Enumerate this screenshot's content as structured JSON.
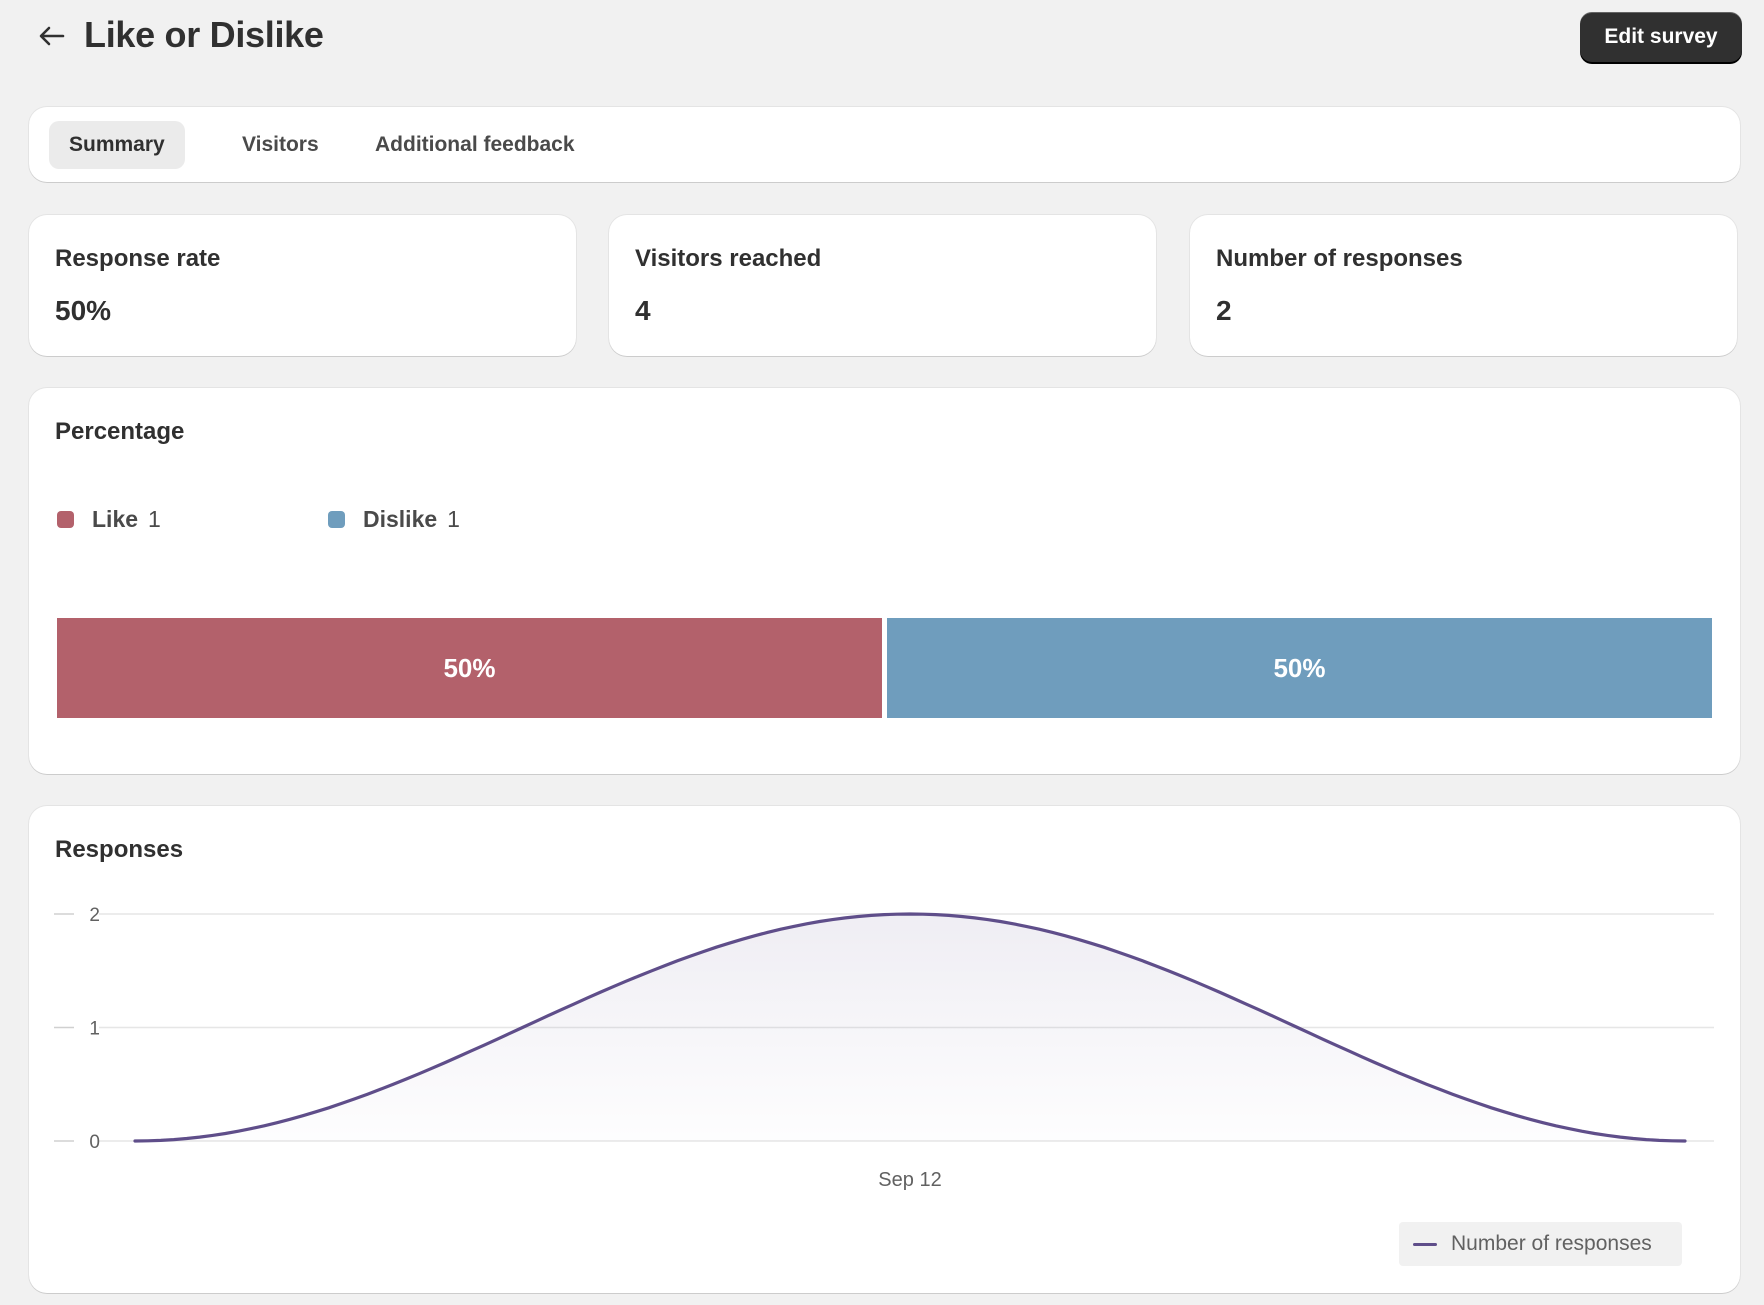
{
  "header": {
    "title": "Like or Dislike",
    "edit_button": "Edit survey"
  },
  "tabs": [
    {
      "label": "Summary",
      "active": true
    },
    {
      "label": "Visitors",
      "active": false
    },
    {
      "label": "Additional feedback",
      "active": false
    }
  ],
  "stats": [
    {
      "label": "Response rate",
      "value": "50%"
    },
    {
      "label": "Visitors reached",
      "value": "4"
    },
    {
      "label": "Number of responses",
      "value": "2"
    }
  ],
  "percentage": {
    "title": "Percentage",
    "legend": [
      {
        "label": "Like",
        "count": "1",
        "color": "#b3616b"
      },
      {
        "label": "Dislike",
        "count": "1",
        "color": "#6f9dbd"
      }
    ],
    "bar": [
      {
        "label": "50%",
        "value": 50,
        "color": "#b3616b"
      },
      {
        "label": "50%",
        "value": 50,
        "color": "#6f9dbd"
      }
    ]
  },
  "responses": {
    "title": "Responses",
    "legend_label": "Number of responses"
  },
  "chart_data": {
    "type": "area",
    "title": "Responses",
    "x": [
      "",
      "Sep 12",
      ""
    ],
    "x_tick_labels": [
      "Sep 12"
    ],
    "series": [
      {
        "name": "Number of responses",
        "values": [
          0,
          2,
          0
        ]
      }
    ],
    "ylim": [
      0,
      2
    ],
    "y_ticks": [
      "0",
      "1",
      "2"
    ],
    "line_color": "#5f4e8a",
    "grid": true,
    "legend_position": "bottom-right"
  },
  "colors": {
    "accent_dark": "#303030",
    "like": "#b3616b",
    "dislike": "#6f9dbd",
    "line": "#5f4e8a"
  }
}
